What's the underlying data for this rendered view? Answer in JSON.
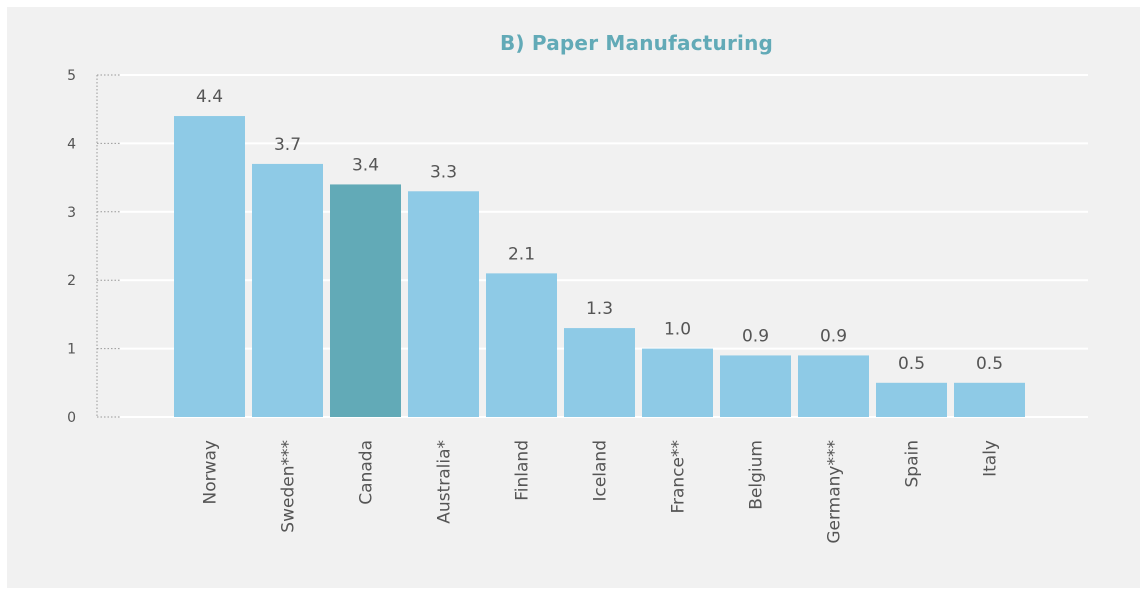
{
  "chart_data": {
    "type": "bar",
    "title": "B) Paper Manufacturing",
    "xlabel": "",
    "ylabel": "",
    "ylim": [
      0,
      5
    ],
    "yticks": [
      0,
      1,
      2,
      3,
      4,
      5
    ],
    "grid": true,
    "categories": [
      "Norway",
      "Sweden***",
      "Canada",
      "Australia*",
      "Finland",
      "Iceland",
      "France**",
      "Belgium",
      "Germany***",
      "Spain",
      "Italy"
    ],
    "values": [
      4.4,
      3.7,
      3.4,
      3.3,
      2.1,
      1.3,
      1.0,
      0.9,
      0.9,
      0.5,
      0.5
    ],
    "value_labels": [
      "4.4",
      "3.7",
      "3.4",
      "3.3",
      "2.1",
      "1.3",
      "1.0",
      "0.9",
      "0.9",
      "0.5",
      "0.5"
    ],
    "highlight_category": "Canada",
    "colors": {
      "bar": "#8ecae6",
      "highlight": "#62aab7",
      "title": "#62aab7",
      "grid": "#ffffff",
      "text": "#555555",
      "background": "#f1f1f1"
    }
  }
}
